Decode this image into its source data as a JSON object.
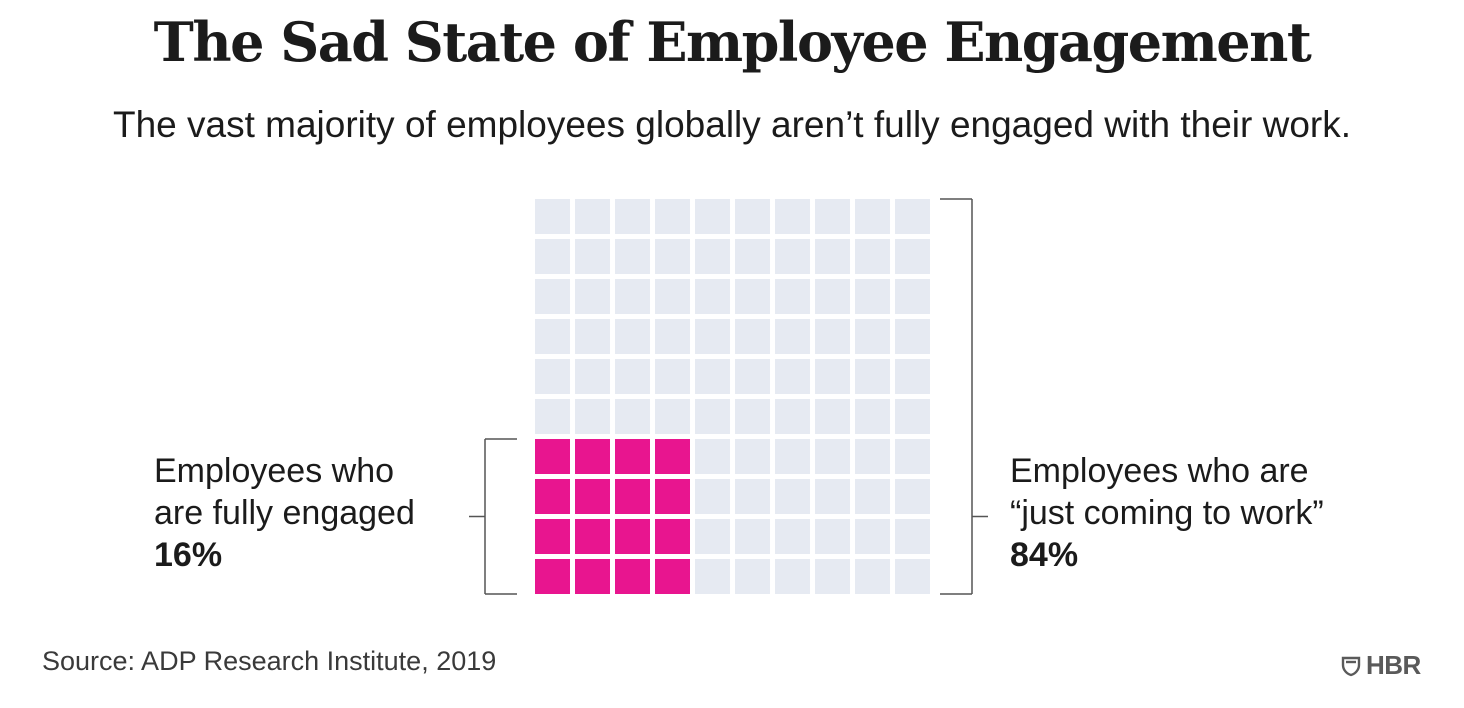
{
  "title": "The Sad State of Employee Engagement",
  "subtitle": "The vast majority of employees globally aren’t fully engaged with their work.",
  "source": "Source: ADP Research Institute, 2019",
  "logo_text": "HBR",
  "colors": {
    "engaged": "#e8158f",
    "not_engaged": "#e6eaf2",
    "bracket": "#555555"
  },
  "chart_data": {
    "type": "waffle",
    "total_cells": 100,
    "grid": {
      "rows": 10,
      "cols": 10
    },
    "series": [
      {
        "name": "Employees who are fully engaged",
        "label_lines": [
          "Employees who",
          "are fully engaged"
        ],
        "value_label": "16%",
        "value": 16
      },
      {
        "name": "Employees who are “just coming to work”",
        "label_lines": [
          "Employees who are",
          "“just coming to work”"
        ],
        "value_label": "84%",
        "value": 84
      }
    ]
  }
}
